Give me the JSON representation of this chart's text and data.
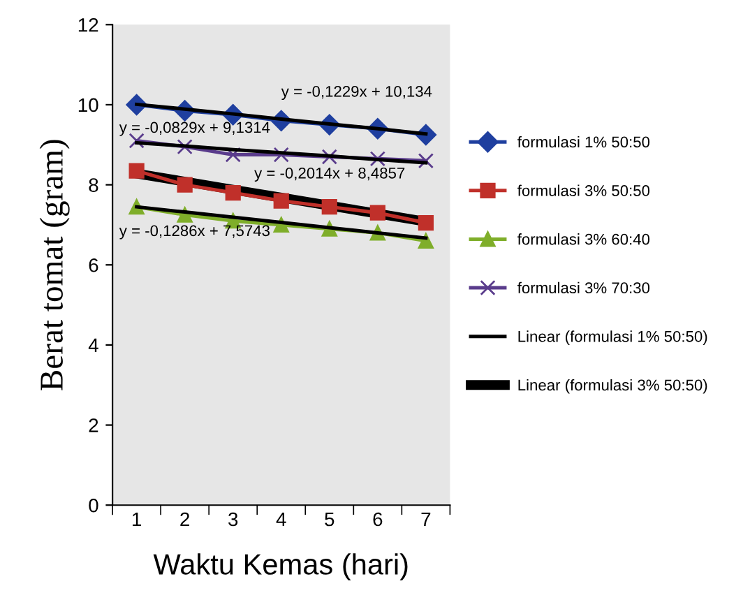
{
  "chart_data": {
    "type": "line",
    "xlabel": "Waktu Kemas (hari)",
    "ylabel": "Berat tomat (gram)",
    "categories": [
      "1",
      "2",
      "3",
      "4",
      "5",
      "6",
      "7"
    ],
    "ylim": [
      0,
      12
    ],
    "yticks": [
      0,
      2,
      4,
      6,
      8,
      10,
      12
    ],
    "grid": false,
    "legend": "right",
    "series": [
      {
        "name": "formulasi 1% 50:50",
        "color": "#1f3f9f",
        "marker": "diamond",
        "values": [
          10.0,
          9.85,
          9.75,
          9.6,
          9.5,
          9.4,
          9.25
        ]
      },
      {
        "name": "formulasi 3% 50:50",
        "color": "#c0302a",
        "marker": "square",
        "values": [
          8.35,
          8.0,
          7.8,
          7.6,
          7.45,
          7.3,
          7.05
        ]
      },
      {
        "name": "formulasi 3% 60:40",
        "color": "#7fae2a",
        "marker": "triangle",
        "values": [
          7.45,
          7.25,
          7.1,
          7.0,
          6.9,
          6.8,
          6.6
        ]
      },
      {
        "name": "formulasi 3% 70:30",
        "color": "#5a3c8c",
        "marker": "cross",
        "values": [
          9.1,
          8.95,
          8.75,
          8.75,
          8.7,
          8.65,
          8.6
        ]
      },
      {
        "name": "Linear (formulasi 1% 50:50)",
        "color": "#000000",
        "marker": "none",
        "values": [
          10.01,
          9.89,
          9.77,
          9.64,
          9.52,
          9.4,
          9.27
        ]
      },
      {
        "name": "Linear (formulasi 3% 50:50)",
        "color": "#000000",
        "marker": "none",
        "values": [
          8.28,
          8.08,
          7.88,
          7.68,
          7.48,
          7.28,
          7.08
        ]
      },
      {
        "color": "#000000",
        "marker": "none",
        "values": [
          7.45,
          7.32,
          7.19,
          7.06,
          6.93,
          6.8,
          6.67
        ]
      },
      {
        "color": "#000000",
        "marker": "none",
        "values": [
          9.05,
          8.97,
          8.88,
          8.8,
          8.72,
          8.63,
          8.55
        ]
      }
    ],
    "annotations": [
      "y = -0,1229x + 10,134",
      "y = -0,0829x + 9,1314",
      "y = -0,2014x + 8,4857",
      "y = -0,1286x + 7,5743"
    ]
  }
}
